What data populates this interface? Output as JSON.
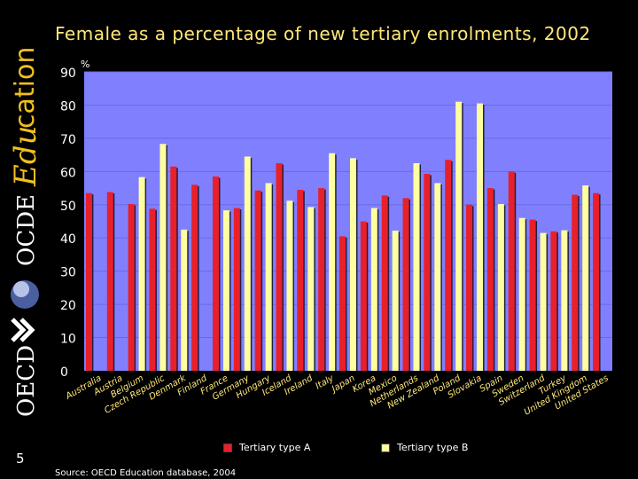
{
  "sidebar": {
    "brand": "OECD",
    "brand_fr": "OCDE",
    "section_italic": "Edu",
    "section_word": "cation",
    "page_number": "5"
  },
  "chart_data": {
    "type": "bar",
    "title": "Female as a percentage of new tertiary enrolments, 2002",
    "ylabel": "%",
    "ylim": [
      0,
      90
    ],
    "yticks": [
      0,
      10,
      20,
      30,
      40,
      50,
      60,
      70,
      80,
      90
    ],
    "categories": [
      "Australia",
      "Austria",
      "Belgium",
      "Czech Republic",
      "Denmark",
      "Finland",
      "France",
      "Germany",
      "Hungary",
      "Iceland",
      "Ireland",
      "Italy",
      "Japan",
      "Korea",
      "Mexico",
      "Netherlands",
      "New Zealand",
      "Poland",
      "Slovakia",
      "Spain",
      "Sweden",
      "Switzerland",
      "Turkey",
      "United Kingdom",
      "United States"
    ],
    "series": [
      {
        "name": "Tertiary type A",
        "color": "#e8202a",
        "values": [
          53.5,
          53.8,
          50.2,
          48.8,
          61.5,
          56,
          58.5,
          49,
          54.3,
          62.5,
          54.5,
          55,
          40.5,
          45,
          52.8,
          52,
          59.3,
          63.5,
          50,
          55,
          60,
          45.5,
          42,
          53,
          53.5
        ]
      },
      {
        "name": "Tertiary type B",
        "color": "#ffffa0",
        "values": [
          null,
          null,
          58.3,
          68.3,
          42.5,
          null,
          48.3,
          64.5,
          56.5,
          51.2,
          49.3,
          65.5,
          64,
          49,
          42.2,
          62.5,
          56.5,
          81,
          80.5,
          50.2,
          46,
          41.5,
          42.3,
          55.8,
          null
        ]
      }
    ],
    "source": "Source: OECD Education database, 2004"
  }
}
